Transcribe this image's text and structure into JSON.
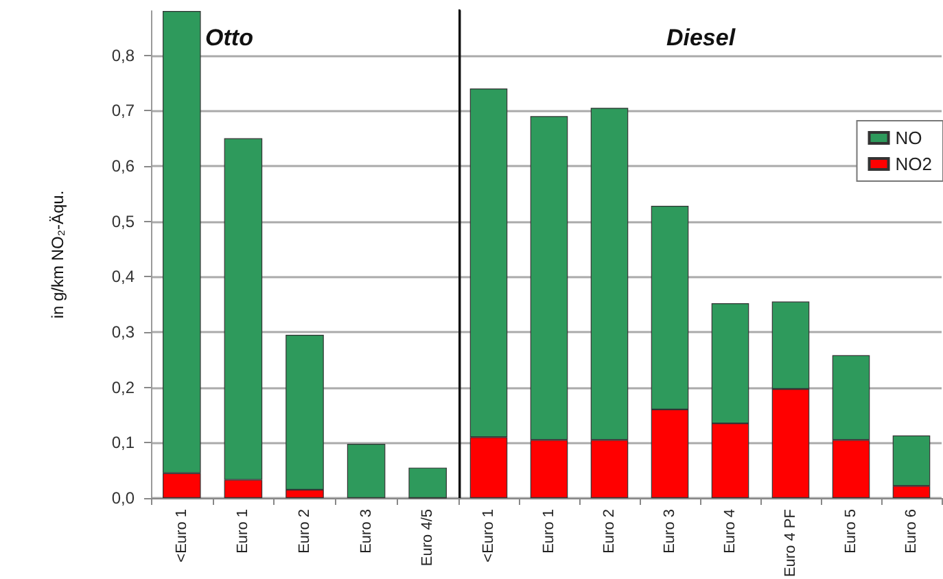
{
  "chart_data": [
    {
      "type": "bar",
      "title": "Otto",
      "ylabel": "in g/km NO₂-Äqu.",
      "categories": [
        "<Euro 1",
        "Euro 1",
        "Euro 2",
        "Euro 3",
        "Euro 4/5"
      ],
      "stacked": true,
      "series": [
        {
          "color": "#ff0000",
          "values": [
            0.045,
            0.033,
            0.015,
            null,
            0
          ]
        },
        {
          "color": "#2e9a5c",
          "values": [
            0.835,
            0.617,
            0.28,
            0.098,
            0.055
          ]
        }
      ],
      "ylim": [
        0,
        0.88
      ],
      "yticks": [
        {
          "value": 0,
          "label": "0,0"
        },
        {
          "value": 0.1,
          "label": "0,1"
        },
        {
          "value": 0.2,
          "label": "0,2"
        },
        {
          "value": 0.3,
          "label": "0,3"
        },
        {
          "value": 0.4,
          "label": "0,4"
        },
        {
          "value": 0.5,
          "label": "0,5"
        },
        {
          "value": 0.6,
          "label": "0,6"
        },
        {
          "value": 0.7,
          "label": "0,7"
        },
        {
          "value": 0.8,
          "label": "0,8"
        }
      ],
      "grid": "y"
    },
    {
      "type": "bar",
      "title": "Diesel",
      "categories": [
        "<Euro 1",
        "Euro 1",
        "Euro 2",
        "Euro 3",
        "Euro 4",
        "Euro 4 PF",
        "Euro 5",
        "Euro 6"
      ],
      "stacked": true,
      "series": [
        {
          "name": "NO2",
          "color": "#ff0000",
          "values": [
            0.11,
            0.105,
            0.105,
            0.16,
            0.135,
            0.197,
            0.105,
            0.022
          ]
        },
        {
          "name": "NO",
          "color": "#2e9a5c",
          "values": [
            0.63,
            0.585,
            0.6,
            0.368,
            0.217,
            0.158,
            0.153,
            0.091
          ]
        }
      ],
      "ylim": [
        0,
        0.88
      ],
      "yticks": [
        0,
        0.1,
        0.2,
        0.3,
        0.4,
        0.5,
        0.6,
        0.7,
        0.8
      ],
      "grid": "y",
      "tick_labels": "x",
      "legend": "top right"
    }
  ]
}
